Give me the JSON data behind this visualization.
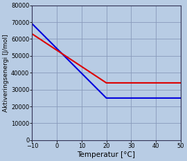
{
  "blue_x": [
    -10,
    20,
    50
  ],
  "blue_y": [
    69000,
    25000,
    25000
  ],
  "red_x": [
    -10,
    20,
    50
  ],
  "red_y": [
    63000,
    34000,
    34000
  ],
  "blue_color": "#0000dd",
  "red_color": "#dd0000",
  "xlabel": "Temperatur [°C]",
  "ylabel": "Aktiveringsenergi [J/mol]",
  "xlim": [
    -10,
    50
  ],
  "ylim": [
    0,
    80000
  ],
  "xticks": [
    -10,
    0,
    10,
    20,
    30,
    40,
    50
  ],
  "yticks": [
    0,
    10000,
    20000,
    30000,
    40000,
    50000,
    60000,
    70000,
    80000
  ],
  "background_color": "#b8cce4",
  "plot_bg_color": "#b8cce4",
  "grid_color": "#8899bb",
  "line_width": 1.5,
  "xlabel_fontsize": 7.5,
  "ylabel_fontsize": 6.5,
  "tick_fontsize": 6.0
}
